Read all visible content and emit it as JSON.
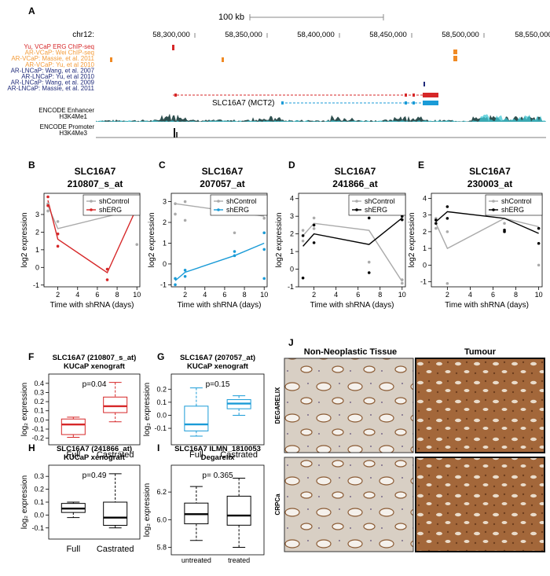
{
  "panel_a": {
    "letter": "A",
    "scale_label": "100 kb",
    "chrom": "chr12:",
    "coords": [
      "58,300,000",
      "58,350,000",
      "58,400,000",
      "58,450,000",
      "58,500,000",
      "58,550,000"
    ],
    "tracks": [
      {
        "label": "Yu, VCaP ERG ChIP-seq",
        "color": "#d62728"
      },
      {
        "label": "AR-VCaP: Wei ChIP-seq",
        "color": "#f39c3a"
      },
      {
        "label": "AR-VCaP: Massie, et al. 2011",
        "color": "#f39c3a"
      },
      {
        "label": "AR-VCaP: Yu, et al 2010",
        "color": "#f39c3a"
      },
      {
        "label": "AR-LNCaP: Wang, et al. 2007",
        "color": "#1f2a7a"
      },
      {
        "label": "AR-LNCaP: Yu, et al 2010",
        "color": "#1f2a7a"
      },
      {
        "label": "AR-LNCaP: Wang, et al. 2009",
        "color": "#1f2a7a"
      },
      {
        "label": "AR-LNCaP: Massie, et al. 2011",
        "color": "#1f2a7a"
      }
    ],
    "gene_label": "SLC16A7 (MCT2)",
    "encode_enhancer": "ENCODE Enhancer",
    "h3k4me1": "H3K4Me1",
    "encode_promoter": "ENCODE Promoter",
    "h3k4me3": "H3K4Me3"
  },
  "colors": {
    "red": "#d62728",
    "blue": "#1a9bd7",
    "grey": "#aaaaaa",
    "black": "#000000",
    "orange": "#f08a24",
    "navy": "#1f2a7a",
    "tissue_brown": "#a0663a"
  },
  "line_panels": [
    {
      "letter": "B",
      "title1": "SLC16A7",
      "title2": "210807_s_at",
      "legend": [
        "shControl",
        "shERG"
      ],
      "treat_color": "#d62728",
      "xlabel": "Time with shRNA (days)",
      "ylabel": "log2 expression",
      "xticks": [
        2,
        4,
        6,
        8,
        10
      ],
      "yticks": [
        -1,
        0,
        1,
        2,
        3
      ],
      "ylim": [
        -1.1,
        4.2
      ],
      "control_line": [
        [
          1,
          3.5
        ],
        [
          2,
          2.2
        ],
        [
          10,
          3.3
        ]
      ],
      "erg_line": [
        [
          1,
          3.8
        ],
        [
          2,
          1.6
        ],
        [
          7,
          -0.3
        ],
        [
          10,
          3.4
        ]
      ],
      "control_pts": [
        [
          1,
          3.6
        ],
        [
          1,
          3.2
        ],
        [
          2,
          2.6
        ],
        [
          2,
          1.9
        ],
        [
          10,
          3.2
        ],
        [
          10,
          1.3
        ]
      ],
      "erg_pts": [
        [
          1,
          4.0
        ],
        [
          1,
          3.5
        ],
        [
          2,
          1.9
        ],
        [
          2,
          1.2
        ],
        [
          7,
          -0.1
        ],
        [
          7,
          -0.7
        ],
        [
          10,
          3.5
        ],
        [
          10,
          3.3
        ]
      ]
    },
    {
      "letter": "C",
      "title1": "SLC16A7",
      "title2": "207057_at",
      "legend": [
        "shControl",
        "shERG"
      ],
      "treat_color": "#1a9bd7",
      "xlabel": "Time with shRNA (days)",
      "ylabel": "log2 expression",
      "xticks": [
        2,
        4,
        6,
        8,
        10
      ],
      "yticks": [
        -1,
        0,
        1,
        2,
        3
      ],
      "ylim": [
        -1.1,
        3.4
      ],
      "control_line": [
        [
          1,
          2.9
        ],
        [
          10,
          2.3
        ]
      ],
      "erg_line": [
        [
          1,
          -0.8
        ],
        [
          2,
          -0.4
        ],
        [
          7,
          0.4
        ],
        [
          10,
          1.0
        ]
      ],
      "control_pts": [
        [
          1,
          2.9
        ],
        [
          1,
          2.4
        ],
        [
          2,
          3.0
        ],
        [
          2,
          2.1
        ],
        [
          7,
          1.5
        ],
        [
          10,
          2.2
        ],
        [
          10,
          1.5
        ]
      ],
      "erg_pts": [
        [
          1,
          -0.7
        ],
        [
          1,
          -1.0
        ],
        [
          2,
          -0.3
        ],
        [
          2,
          -0.6
        ],
        [
          7,
          0.6
        ],
        [
          7,
          0.4
        ],
        [
          10,
          1.5
        ],
        [
          10,
          0.7
        ],
        [
          10,
          -0.7
        ]
      ]
    },
    {
      "letter": "D",
      "title1": "SLC16A7",
      "title2": "241866_at",
      "legend": [
        "shControl",
        "shERG"
      ],
      "treat_color": "#000000",
      "xlabel": "Time with shRNA (days)",
      "ylabel": "log2 expression",
      "xticks": [
        2,
        4,
        6,
        8,
        10
      ],
      "yticks": [
        -1,
        0,
        1,
        2,
        3,
        4
      ],
      "ylim": [
        -1.0,
        4.3
      ],
      "control_line": [
        [
          1,
          1.9
        ],
        [
          2,
          2.6
        ],
        [
          7,
          2.2
        ],
        [
          10,
          -0.7
        ]
      ],
      "erg_line": [
        [
          1,
          1.3
        ],
        [
          2,
          2.0
        ],
        [
          7,
          1.4
        ],
        [
          10,
          2.9
        ]
      ],
      "control_pts": [
        [
          1,
          2.2
        ],
        [
          1,
          1.6
        ],
        [
          2,
          2.9
        ],
        [
          2,
          2.3
        ],
        [
          7,
          0.4
        ],
        [
          10,
          -0.6
        ],
        [
          10,
          -0.8
        ]
      ],
      "erg_pts": [
        [
          1,
          1.9
        ],
        [
          1,
          -0.5
        ],
        [
          2,
          2.5
        ],
        [
          2,
          1.5
        ],
        [
          7,
          2.9
        ],
        [
          7,
          -0.2
        ],
        [
          10,
          3.0
        ],
        [
          10,
          2.8
        ]
      ]
    },
    {
      "letter": "E",
      "title1": "SLC16A7",
      "title2": "230003_at",
      "legend": [
        "shControl",
        "shERG"
      ],
      "treat_color": "#000000",
      "xlabel": "Time with shRNA (days)",
      "ylabel": "log2 expression",
      "xticks": [
        2,
        4,
        6,
        8,
        10
      ],
      "yticks": [
        -1,
        0,
        1,
        2,
        3,
        4
      ],
      "ylim": [
        -1.3,
        4.3
      ],
      "control_line": [
        [
          1,
          2.5
        ],
        [
          2,
          1.0
        ],
        [
          7,
          2.8
        ],
        [
          10,
          2.3
        ]
      ],
      "erg_line": [
        [
          1,
          2.6
        ],
        [
          2,
          3.2
        ],
        [
          7,
          2.8
        ],
        [
          10,
          1.9
        ]
      ],
      "control_pts": [
        [
          1,
          2.2
        ],
        [
          1,
          2.8
        ],
        [
          2,
          2.0
        ],
        [
          2,
          -1.1
        ],
        [
          7,
          2.5
        ],
        [
          10,
          2.2
        ],
        [
          10,
          0.0
        ]
      ],
      "erg_pts": [
        [
          1,
          2.7
        ],
        [
          1,
          2.5
        ],
        [
          2,
          3.5
        ],
        [
          2,
          2.8
        ],
        [
          7,
          2.1
        ],
        [
          7,
          2.0
        ],
        [
          10,
          2.2
        ],
        [
          10,
          1.3
        ]
      ]
    }
  ],
  "box_panels": [
    {
      "letter": "F",
      "title1": "SLC16A7 (210807_s_at)",
      "title2": "KUCaP xenograft",
      "pvalue": "p=0.04",
      "ylabel": "log₂ expression",
      "color": "#d62728",
      "yticks": [
        -0.2,
        -0.1,
        0.0,
        0.1,
        0.2,
        0.3,
        0.4
      ],
      "ylim": [
        -0.22,
        0.45
      ],
      "groups": [
        {
          "name": "Full",
          "min": -0.19,
          "q1": -0.16,
          "median": -0.05,
          "q3": 0.01,
          "max": 0.03
        },
        {
          "name": "Castrated",
          "min": -0.02,
          "q1": 0.08,
          "median": 0.15,
          "q3": 0.25,
          "max": 0.41
        }
      ]
    },
    {
      "letter": "G",
      "title1": "SLC16A7 (207057_at)",
      "title2": "KUCaP xenograft",
      "pvalue": "p=0.15",
      "ylabel": "log₂ expression",
      "color": "#1a9bd7",
      "yticks": [
        -0.1,
        0.0,
        0.1,
        0.2
      ],
      "ylim": [
        -0.19,
        0.28
      ],
      "groups": [
        {
          "name": "Full",
          "min": -0.16,
          "q1": -0.12,
          "median": -0.07,
          "q3": 0.07,
          "max": 0.21
        },
        {
          "name": "Castrated",
          "min": 0.0,
          "q1": 0.05,
          "median": 0.09,
          "q3": 0.12,
          "max": 0.15
        }
      ]
    },
    {
      "letter": "H",
      "title1": "SLC16A7 (241866_at)",
      "title2": "KUCaP xenograft",
      "pvalue": "p=0.49",
      "ylabel": "log₂ expression",
      "color": "#000000",
      "yticks": [
        -0.1,
        0.0,
        0.1,
        0.2,
        0.3
      ],
      "ylim": [
        -0.15,
        0.35
      ],
      "groups": [
        {
          "name": "Full",
          "min": -0.02,
          "q1": 0.02,
          "median": 0.05,
          "q3": 0.09,
          "max": 0.1
        },
        {
          "name": "Castrated",
          "min": -0.1,
          "q1": -0.08,
          "median": -0.02,
          "q3": 0.1,
          "max": 0.32
        }
      ]
    },
    {
      "letter": "I",
      "title1": "SLC16A7 ILMN_1810053",
      "title2": "Degarelix",
      "pvalue": "p= 0.365",
      "ylabel": "log₂ expression",
      "color": "#000000",
      "yticks": [
        5.8,
        6.0,
        6.2
      ],
      "ylim": [
        5.78,
        6.36
      ],
      "groups": [
        {
          "name": "untreated",
          "min": 5.85,
          "q1": 5.97,
          "median": 6.04,
          "q3": 6.12,
          "max": 6.24
        },
        {
          "name": "treated",
          "min": 5.8,
          "q1": 5.96,
          "median": 6.03,
          "q3": 6.17,
          "max": 6.3
        }
      ]
    }
  ],
  "panel_j": {
    "letter": "J",
    "col1": "Non-Neoplastic Tissue",
    "col2": "Tumour",
    "row1": "DEGARELIX",
    "row2": "CRPCa"
  }
}
